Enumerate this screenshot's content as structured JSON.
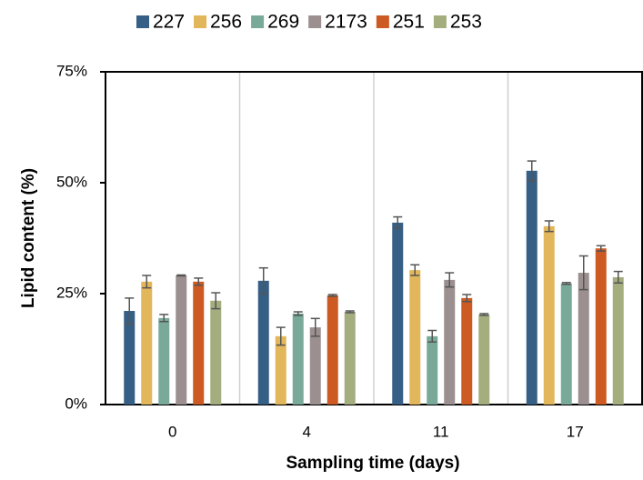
{
  "chart_data": {
    "type": "bar",
    "xlabel": "Sampling time (days)",
    "ylabel": "Lipid content (%)",
    "categories": [
      "0",
      "4",
      "11",
      "17"
    ],
    "series": [
      {
        "name": "227",
        "color": "#365f85",
        "values": [
          21.1,
          27.9,
          41.0,
          52.7
        ],
        "errors": [
          2.9,
          2.9,
          1.3,
          2.2
        ]
      },
      {
        "name": "256",
        "color": "#e2b65a",
        "values": [
          27.7,
          15.4,
          30.3,
          40.2
        ],
        "errors": [
          1.4,
          2.0,
          1.2,
          1.2
        ]
      },
      {
        "name": "269",
        "color": "#79aa99",
        "values": [
          19.5,
          20.5,
          15.4,
          27.3
        ],
        "errors": [
          0.8,
          0.4,
          1.3,
          0.2
        ]
      },
      {
        "name": "2173",
        "color": "#9b8f8f",
        "values": [
          29.1,
          17.4,
          28.1,
          29.7
        ],
        "errors": [
          0.1,
          2.0,
          1.6,
          3.8
        ]
      },
      {
        "name": "251",
        "color": "#cc5a22",
        "values": [
          27.7,
          24.6,
          24.0,
          35.2
        ],
        "errors": [
          0.8,
          0.2,
          0.8,
          0.6
        ]
      },
      {
        "name": "253",
        "color": "#a3ad7e",
        "values": [
          23.4,
          20.9,
          20.3,
          28.7
        ],
        "errors": [
          1.8,
          0.2,
          0.2,
          1.3
        ]
      }
    ],
    "ylim": [
      0,
      75
    ],
    "yticks": [
      {
        "value": 0,
        "label": "0%"
      },
      {
        "value": 25,
        "label": "25%"
      },
      {
        "value": 50,
        "label": "50%"
      },
      {
        "value": 75,
        "label": "75%"
      }
    ],
    "legend": "top"
  }
}
